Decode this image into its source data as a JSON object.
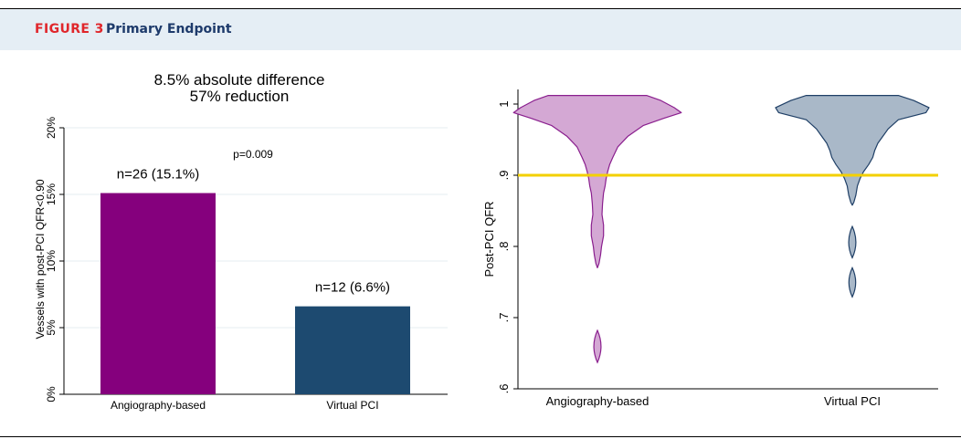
{
  "header": {
    "figure_label": "FIGURE 3",
    "figure_title": "Primary Endpoint"
  },
  "colors": {
    "header_bg": "#e5eef5",
    "figure_label": "#e0262b",
    "figure_title": "#1d3a6b",
    "angiography": "#85007d",
    "virtual_pci": "#1d4a70",
    "violin_angio_fill": "#d4a8d4",
    "violin_angio_stroke": "#8a1f8e",
    "violin_vpci_fill": "#a9b8c8",
    "violin_vpci_stroke": "#1f3f66",
    "threshold_line": "#f3d000"
  },
  "chart_data": [
    {
      "type": "bar",
      "title_lines": [
        "8.5% absolute difference",
        "57% reduction"
      ],
      "ylabel": "Vessels with post-PCI QFR<0.90",
      "categories": [
        "Angiography-based",
        "Virtual PCI"
      ],
      "values": [
        15.1,
        6.6
      ],
      "bar_labels": [
        "n=26 (15.1%)",
        "n=12 (6.6%)"
      ],
      "annotation": "p=0.009",
      "ylim": [
        0,
        20
      ],
      "yticks": [
        {
          "value": 0,
          "label": "0%"
        },
        {
          "value": 5,
          "label": "5%"
        },
        {
          "value": 10,
          "label": "10%"
        },
        {
          "value": 15,
          "label": "15%"
        },
        {
          "value": 20,
          "label": "20%"
        }
      ],
      "grid": true
    },
    {
      "type": "violin",
      "ylabel": "Post-PCI QFR",
      "categories": [
        "Angiography-based",
        "Virtual PCI"
      ],
      "ylim": [
        0.6,
        1.0
      ],
      "yticks": [
        {
          "value": 0.6,
          "label": ".6"
        },
        {
          "value": 0.7,
          "label": ".7"
        },
        {
          "value": 0.8,
          "label": ".8"
        },
        {
          "value": 0.9,
          "label": ".9"
        },
        {
          "value": 1.0,
          "label": "1"
        }
      ],
      "reference_line": 0.9,
      "series": [
        {
          "name": "Angiography-based",
          "profile": [
            [
              1.012,
              0.48
            ],
            [
              1.005,
              0.62
            ],
            [
              0.995,
              0.75
            ],
            [
              0.988,
              0.82
            ],
            [
              0.98,
              0.65
            ],
            [
              0.97,
              0.45
            ],
            [
              0.955,
              0.3
            ],
            [
              0.94,
              0.2
            ],
            [
              0.925,
              0.15
            ],
            [
              0.915,
              0.12
            ],
            [
              0.905,
              0.1
            ],
            [
              0.895,
              0.085
            ],
            [
              0.885,
              0.075
            ],
            [
              0.875,
              0.06
            ],
            [
              0.86,
              0.05
            ],
            [
              0.845,
              0.045
            ],
            [
              0.83,
              0.06
            ],
            [
              0.815,
              0.06
            ],
            [
              0.8,
              0.04
            ],
            [
              0.788,
              0.03
            ],
            [
              0.776,
              0.015
            ],
            [
              0.77,
              0.0
            ]
          ],
          "islands": [
            {
              "top": 0.682,
              "bottom": 0.637,
              "max_half_width": 0.035
            }
          ]
        },
        {
          "name": "Virtual PCI",
          "profile": [
            [
              1.012,
              0.45
            ],
            [
              1.005,
              0.6
            ],
            [
              0.995,
              0.75
            ],
            [
              0.988,
              0.72
            ],
            [
              0.978,
              0.45
            ],
            [
              0.965,
              0.35
            ],
            [
              0.955,
              0.3
            ],
            [
              0.945,
              0.25
            ],
            [
              0.935,
              0.22
            ],
            [
              0.925,
              0.2
            ],
            [
              0.915,
              0.16
            ],
            [
              0.905,
              0.11
            ],
            [
              0.895,
              0.075
            ],
            [
              0.885,
              0.05
            ],
            [
              0.872,
              0.035
            ],
            [
              0.862,
              0.015
            ],
            [
              0.858,
              0.0
            ]
          ],
          "islands": [
            {
              "top": 0.828,
              "bottom": 0.784,
              "max_half_width": 0.035
            },
            {
              "top": 0.77,
              "bottom": 0.729,
              "max_half_width": 0.033
            }
          ]
        }
      ]
    }
  ]
}
